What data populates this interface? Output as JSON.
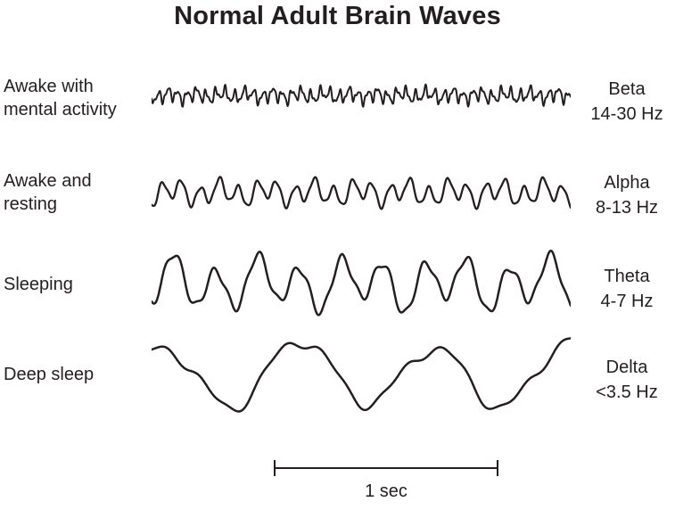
{
  "title": "Normal Adult Brain Waves",
  "stroke_color": "#231f20",
  "rows": [
    {
      "condition": "Awake with\nmental activity",
      "wave_name": "Beta",
      "freq_range": "14-30 Hz",
      "wave": {
        "cycles": 44,
        "amp": 6,
        "seed": 11,
        "stroke": 2,
        "components": [
          [
            1,
            1
          ],
          [
            0.37,
            0.45
          ],
          [
            1.9,
            0.5
          ],
          [
            2.8,
            0.25
          ]
        ]
      }
    },
    {
      "condition": "Awake and\nresting",
      "wave_name": "Alpha",
      "freq_range": "8-13 Hz",
      "wave": {
        "cycles": 22,
        "amp": 11,
        "seed": 5,
        "stroke": 2.3,
        "components": [
          [
            1,
            1
          ],
          [
            0.41,
            0.5
          ],
          [
            2.2,
            0.18
          ]
        ]
      }
    },
    {
      "condition": "Sleeping",
      "wave_name": "Theta",
      "freq_range": "4-7 Hz",
      "wave": {
        "cycles": 10,
        "amp": 24,
        "seed": 3,
        "stroke": 2.5,
        "components": [
          [
            1,
            1
          ],
          [
            0.45,
            0.4
          ],
          [
            2.6,
            0.18
          ]
        ]
      }
    },
    {
      "condition": "Deep sleep",
      "wave_name": "Delta",
      "freq_range": "<3.5 Hz",
      "wave": {
        "cycles": 3.1,
        "amp": 34,
        "seed": 8,
        "stroke": 2.5,
        "components": [
          [
            1,
            1
          ],
          [
            0.5,
            0.15
          ],
          [
            2.2,
            0.18
          ],
          [
            4.5,
            0.08
          ]
        ]
      }
    }
  ],
  "scale_bar": {
    "label": "1 sec"
  }
}
